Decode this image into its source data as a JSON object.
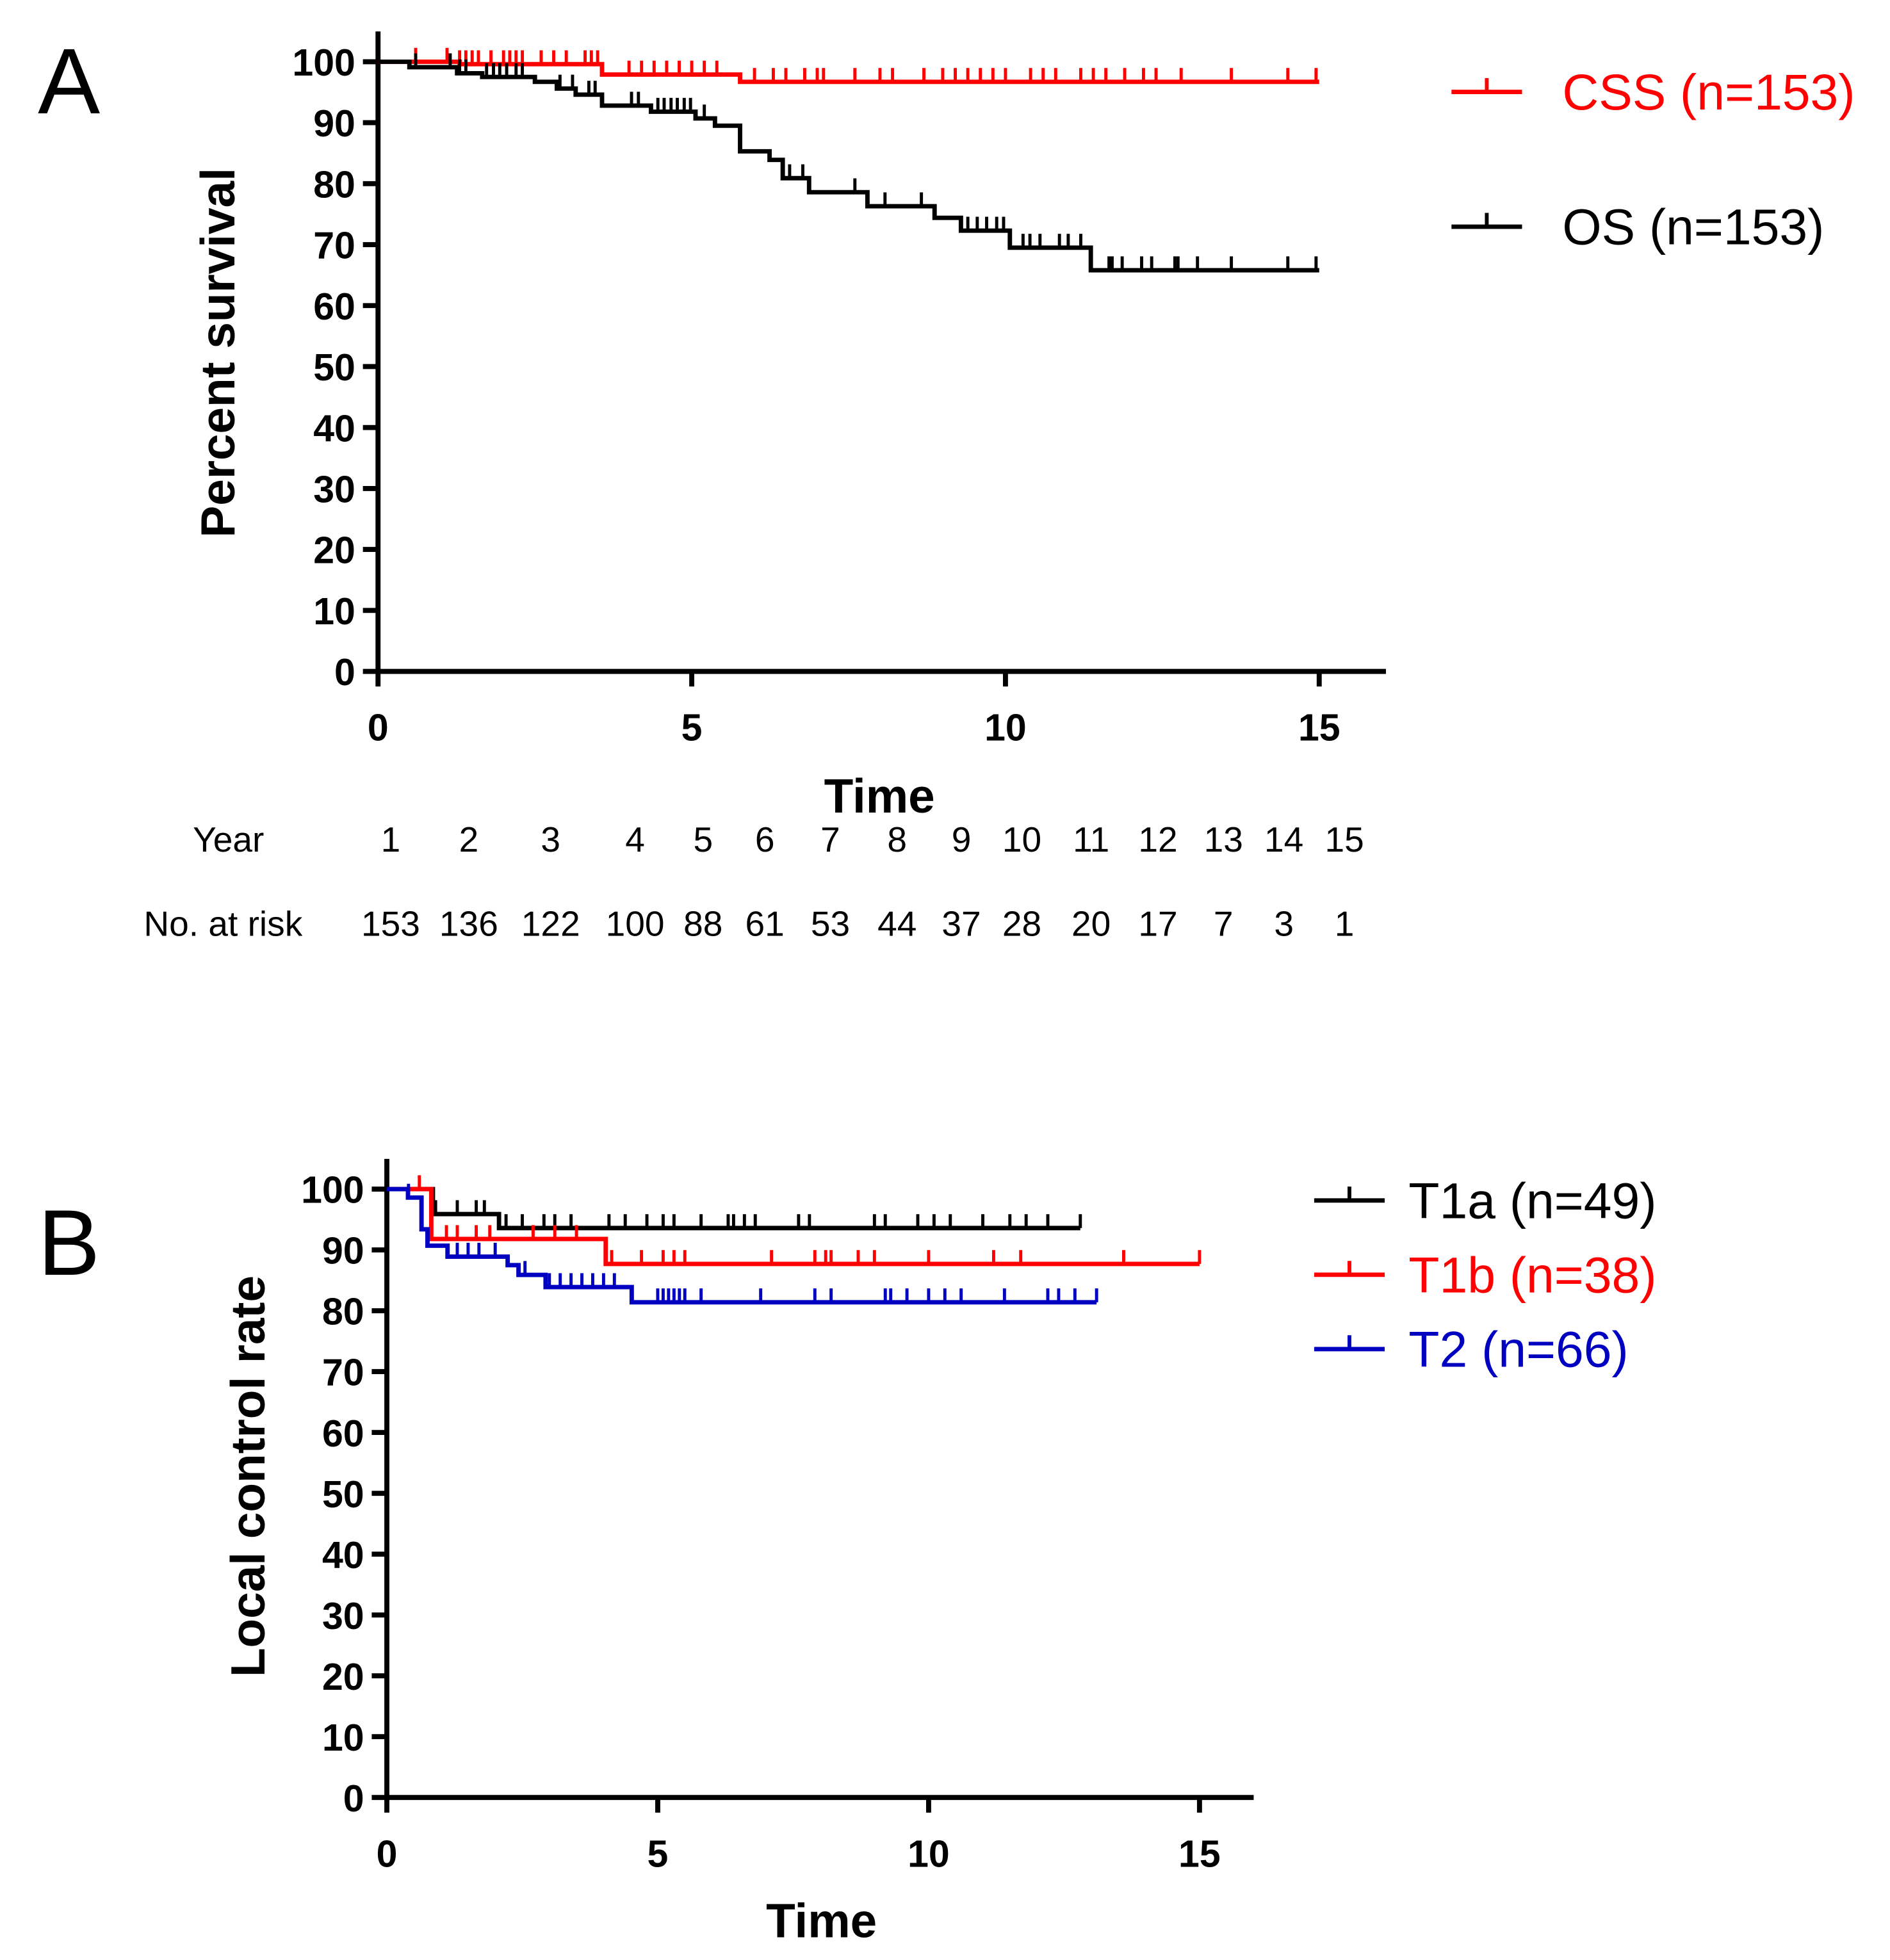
{
  "chart_data": [
    {
      "type": "line",
      "panel_label": "A",
      "xlabel": "Time",
      "ylabel": "Percent survival",
      "xlim": [
        0,
        16
      ],
      "ylim": [
        0,
        100
      ],
      "xticks": [
        "0",
        "5",
        "10",
        "15"
      ],
      "yticks": [
        "0",
        "10",
        "20",
        "30",
        "40",
        "50",
        "60",
        "70",
        "80",
        "90",
        "100"
      ],
      "legend_position": "top-right",
      "series": [
        {
          "name": "CSS (n=153)",
          "color": "#ff0000",
          "steps": [
            [
              0,
              100
            ],
            [
              1.3,
              99.6
            ],
            [
              3.57,
              97.9
            ],
            [
              5.77,
              96.7
            ],
            [
              15,
              96.7
            ]
          ],
          "censored": [
            0.6,
            1.1,
            1.3,
            1.4,
            1.5,
            1.6,
            1.8,
            2.0,
            2.1,
            2.2,
            2.3,
            2.6,
            2.8,
            3.0,
            3.3,
            3.4,
            3.5,
            4.0,
            4.2,
            4.4,
            4.6,
            4.8,
            5.0,
            5.2,
            5.4,
            6.0,
            6.3,
            6.5,
            6.8,
            7.0,
            7.1,
            7.6,
            8.0,
            8.2,
            8.7,
            9.0,
            9.2,
            9.4,
            9.6,
            9.8,
            10.0,
            10.4,
            10.6,
            10.8,
            11.2,
            11.4,
            11.6,
            11.9,
            12.2,
            12.4,
            12.8,
            13.6,
            14.5,
            14.95
          ]
        },
        {
          "name": "OS (n=153)",
          "color": "#000000",
          "steps": [
            [
              0,
              100
            ],
            [
              0.5,
              99.1
            ],
            [
              1.26,
              98.1
            ],
            [
              1.66,
              97.5
            ],
            [
              2.5,
              96.7
            ],
            [
              2.85,
              95.6
            ],
            [
              3.15,
              94.6
            ],
            [
              3.57,
              92.8
            ],
            [
              4.35,
              91.8
            ],
            [
              5.06,
              90.7
            ],
            [
              5.37,
              89.5
            ],
            [
              5.77,
              85.3
            ],
            [
              6.24,
              83.9
            ],
            [
              6.45,
              80.9
            ],
            [
              6.87,
              78.6
            ],
            [
              7.8,
              76.3
            ],
            [
              8.87,
              74.4
            ],
            [
              9.29,
              72.3
            ],
            [
              10.07,
              69.5
            ],
            [
              11.36,
              65.8
            ],
            [
              15,
              65.8
            ]
          ],
          "censored": [
            0.6,
            1.15,
            1.3,
            1.4,
            1.73,
            1.84,
            1.94,
            2.05,
            2.2,
            2.3,
            2.9,
            3.1,
            3.36,
            3.46,
            4.04,
            4.15,
            4.46,
            4.56,
            4.67,
            4.77,
            4.88,
            4.98,
            5.2,
            6.56,
            6.77,
            7.6,
            8.08,
            8.66,
            9.4,
            9.55,
            9.7,
            9.86,
            9.97,
            10.28,
            10.39,
            10.55,
            10.86,
            11.0,
            11.2,
            11.65,
            11.7,
            11.86,
            12.17,
            12.33,
            12.7,
            12.75,
            13.06,
            13.6,
            14.5,
            14.95
          ]
        }
      ],
      "risk_table": {
        "year_label": "Year",
        "risk_label": "No. at risk",
        "years": [
          "1",
          "2",
          "3",
          "4",
          "5",
          "6",
          "7",
          "8",
          "9",
          "10",
          "11",
          "12",
          "13",
          "14",
          "15"
        ],
        "at_risk": [
          "153",
          "136",
          "122",
          "100",
          "88",
          "61",
          "53",
          "44",
          "37",
          "28",
          "20",
          "17",
          "7",
          "3",
          "1"
        ]
      }
    },
    {
      "type": "line",
      "panel_label": "B",
      "xlabel": "Time",
      "ylabel": "Local control rate",
      "xlim": [
        0,
        16
      ],
      "ylim": [
        0,
        100
      ],
      "xticks": [
        "0",
        "5",
        "10",
        "15"
      ],
      "yticks": [
        "0",
        "10",
        "20",
        "30",
        "40",
        "50",
        "60",
        "70",
        "80",
        "90",
        "100"
      ],
      "legend_position": "top-right",
      "series": [
        {
          "name": "T1a (n=49)",
          "color": "#000000",
          "steps": [
            [
              0,
              100
            ],
            [
              0.85,
              95.9
            ],
            [
              2.07,
              93.6
            ],
            [
              12.8,
              93.6
            ]
          ],
          "censored": [
            0.9,
            1.3,
            1.65,
            1.8,
            2.2,
            2.5,
            2.9,
            3.1,
            3.4,
            4.1,
            4.4,
            4.8,
            5.1,
            5.3,
            5.8,
            6.3,
            6.4,
            6.6,
            6.8,
            7.6,
            7.8,
            9.0,
            9.2,
            9.8,
            10.1,
            10.4,
            11.0,
            11.5,
            11.8,
            12.2,
            12.8
          ]
        },
        {
          "name": "T1b (n=38)",
          "color": "#ff0000",
          "steps": [
            [
              0,
              100
            ],
            [
              0.82,
              91.8
            ],
            [
              4.04,
              87.7
            ],
            [
              15,
              87.7
            ]
          ],
          "censored": [
            0.6,
            1.1,
            1.3,
            1.65,
            1.9,
            2.7,
            3.1,
            3.5,
            4.15,
            4.7,
            5.1,
            5.3,
            5.5,
            7.1,
            7.9,
            8.1,
            8.2,
            8.7,
            9.0,
            10.0,
            11.2,
            11.7,
            13.6,
            15.0
          ]
        },
        {
          "name": "T2  (n=66)",
          "color": "#0000c0",
          "steps": [
            [
              0,
              100
            ],
            [
              0.39,
              98.6
            ],
            [
              0.64,
              93.4
            ],
            [
              0.75,
              90.7
            ],
            [
              1.12,
              88.9
            ],
            [
              2.23,
              87.5
            ],
            [
              2.43,
              85.9
            ],
            [
              2.93,
              83.9
            ],
            [
              4.52,
              81.4
            ],
            [
              13.1,
              81.4
            ]
          ],
          "censored": [
            0.4,
            1.3,
            1.5,
            1.7,
            2.0,
            2.55,
            3.0,
            3.2,
            3.4,
            3.6,
            3.8,
            4.0,
            4.2,
            5.0,
            5.1,
            5.2,
            5.3,
            5.4,
            5.5,
            5.8,
            6.9,
            7.9,
            8.2,
            9.2,
            9.3,
            9.6,
            10.0,
            10.3,
            10.6,
            11.4,
            12.2,
            12.4,
            12.7,
            13.1
          ]
        }
      ]
    }
  ]
}
